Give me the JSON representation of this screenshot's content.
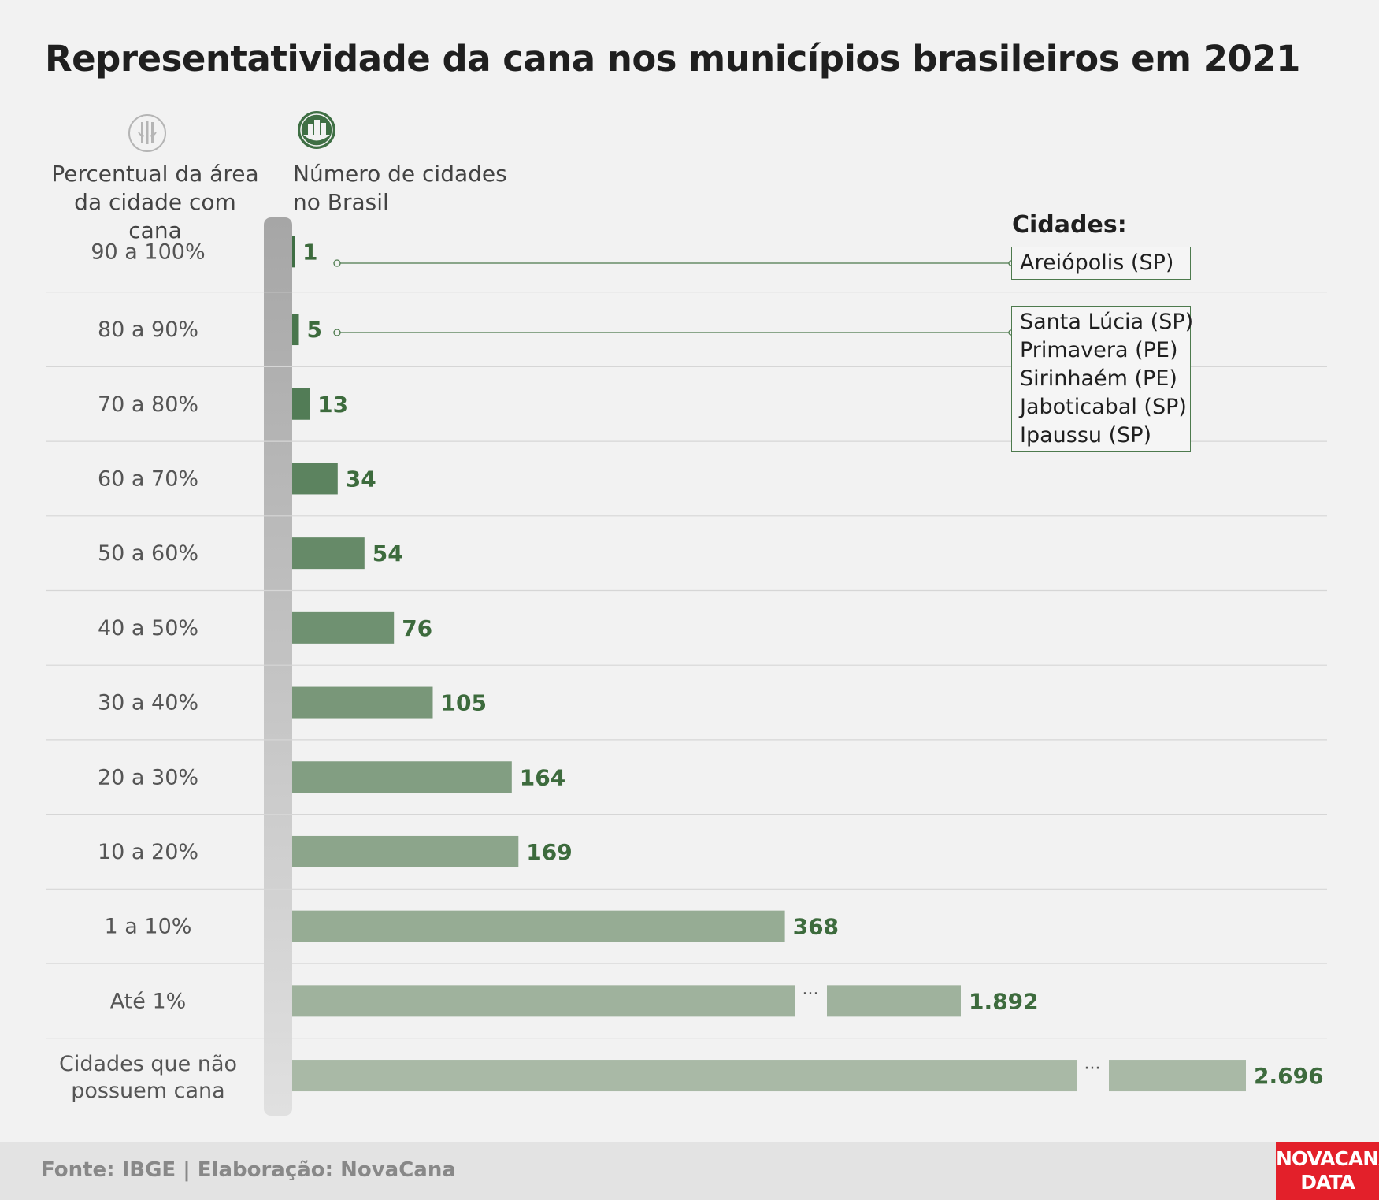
{
  "title": "Representatividade da cana nos municípios brasileiros em 2021",
  "columns": {
    "left_header": [
      "Percentual da área",
      "da cidade com cana"
    ],
    "right_header": [
      "Número de cidades",
      "no Brasil"
    ],
    "left_icon": "sugarcane-icon",
    "right_icon": "city-icon"
  },
  "cities": {
    "title": "Cidades:",
    "group_90_100": [
      "Areiópolis (SP)"
    ],
    "group_80_90": [
      "Santa Lúcia (SP)",
      "Primavera (PE)",
      "Sirinhaém (PE)",
      "Jaboticabal (SP)",
      "Ipaussu (SP)"
    ]
  },
  "footer": {
    "source": "Fonte: IBGE | Elaboração: NovaCana",
    "logo_line1": "NOVACANA",
    "logo_line2": "DATA"
  },
  "colors": {
    "value_text": "#3d6b3d",
    "bar_dark": "#3f6f44",
    "bar_light": "#a9b9a6",
    "left_track_top": "#a6a6a6",
    "left_track_bottom": "#e0e0e0",
    "logo_red": "#e3202a"
  },
  "chart_data": {
    "type": "bar",
    "orientation": "horizontal",
    "title": "Representatividade da cana nos municípios brasileiros em 2021",
    "categories": [
      "90 a 100%",
      "80 a 90%",
      "70 a 80%",
      "60 a 70%",
      "50 a 60%",
      "40 a 50%",
      "30 a 40%",
      "20 a 30%",
      "10 a 20%",
      "1 a 10%",
      "Até 1%",
      "Cidades que não possuem cana"
    ],
    "values": [
      1,
      5,
      13,
      34,
      54,
      76,
      105,
      164,
      169,
      368,
      1892,
      2696
    ],
    "value_labels": [
      "1",
      "5",
      "13",
      "34",
      "54",
      "76",
      "105",
      "164",
      "169",
      "368",
      "1.892",
      "2.696"
    ],
    "broken_axis": [
      "1.892",
      "2.696"
    ],
    "break_marker": "···"
  }
}
